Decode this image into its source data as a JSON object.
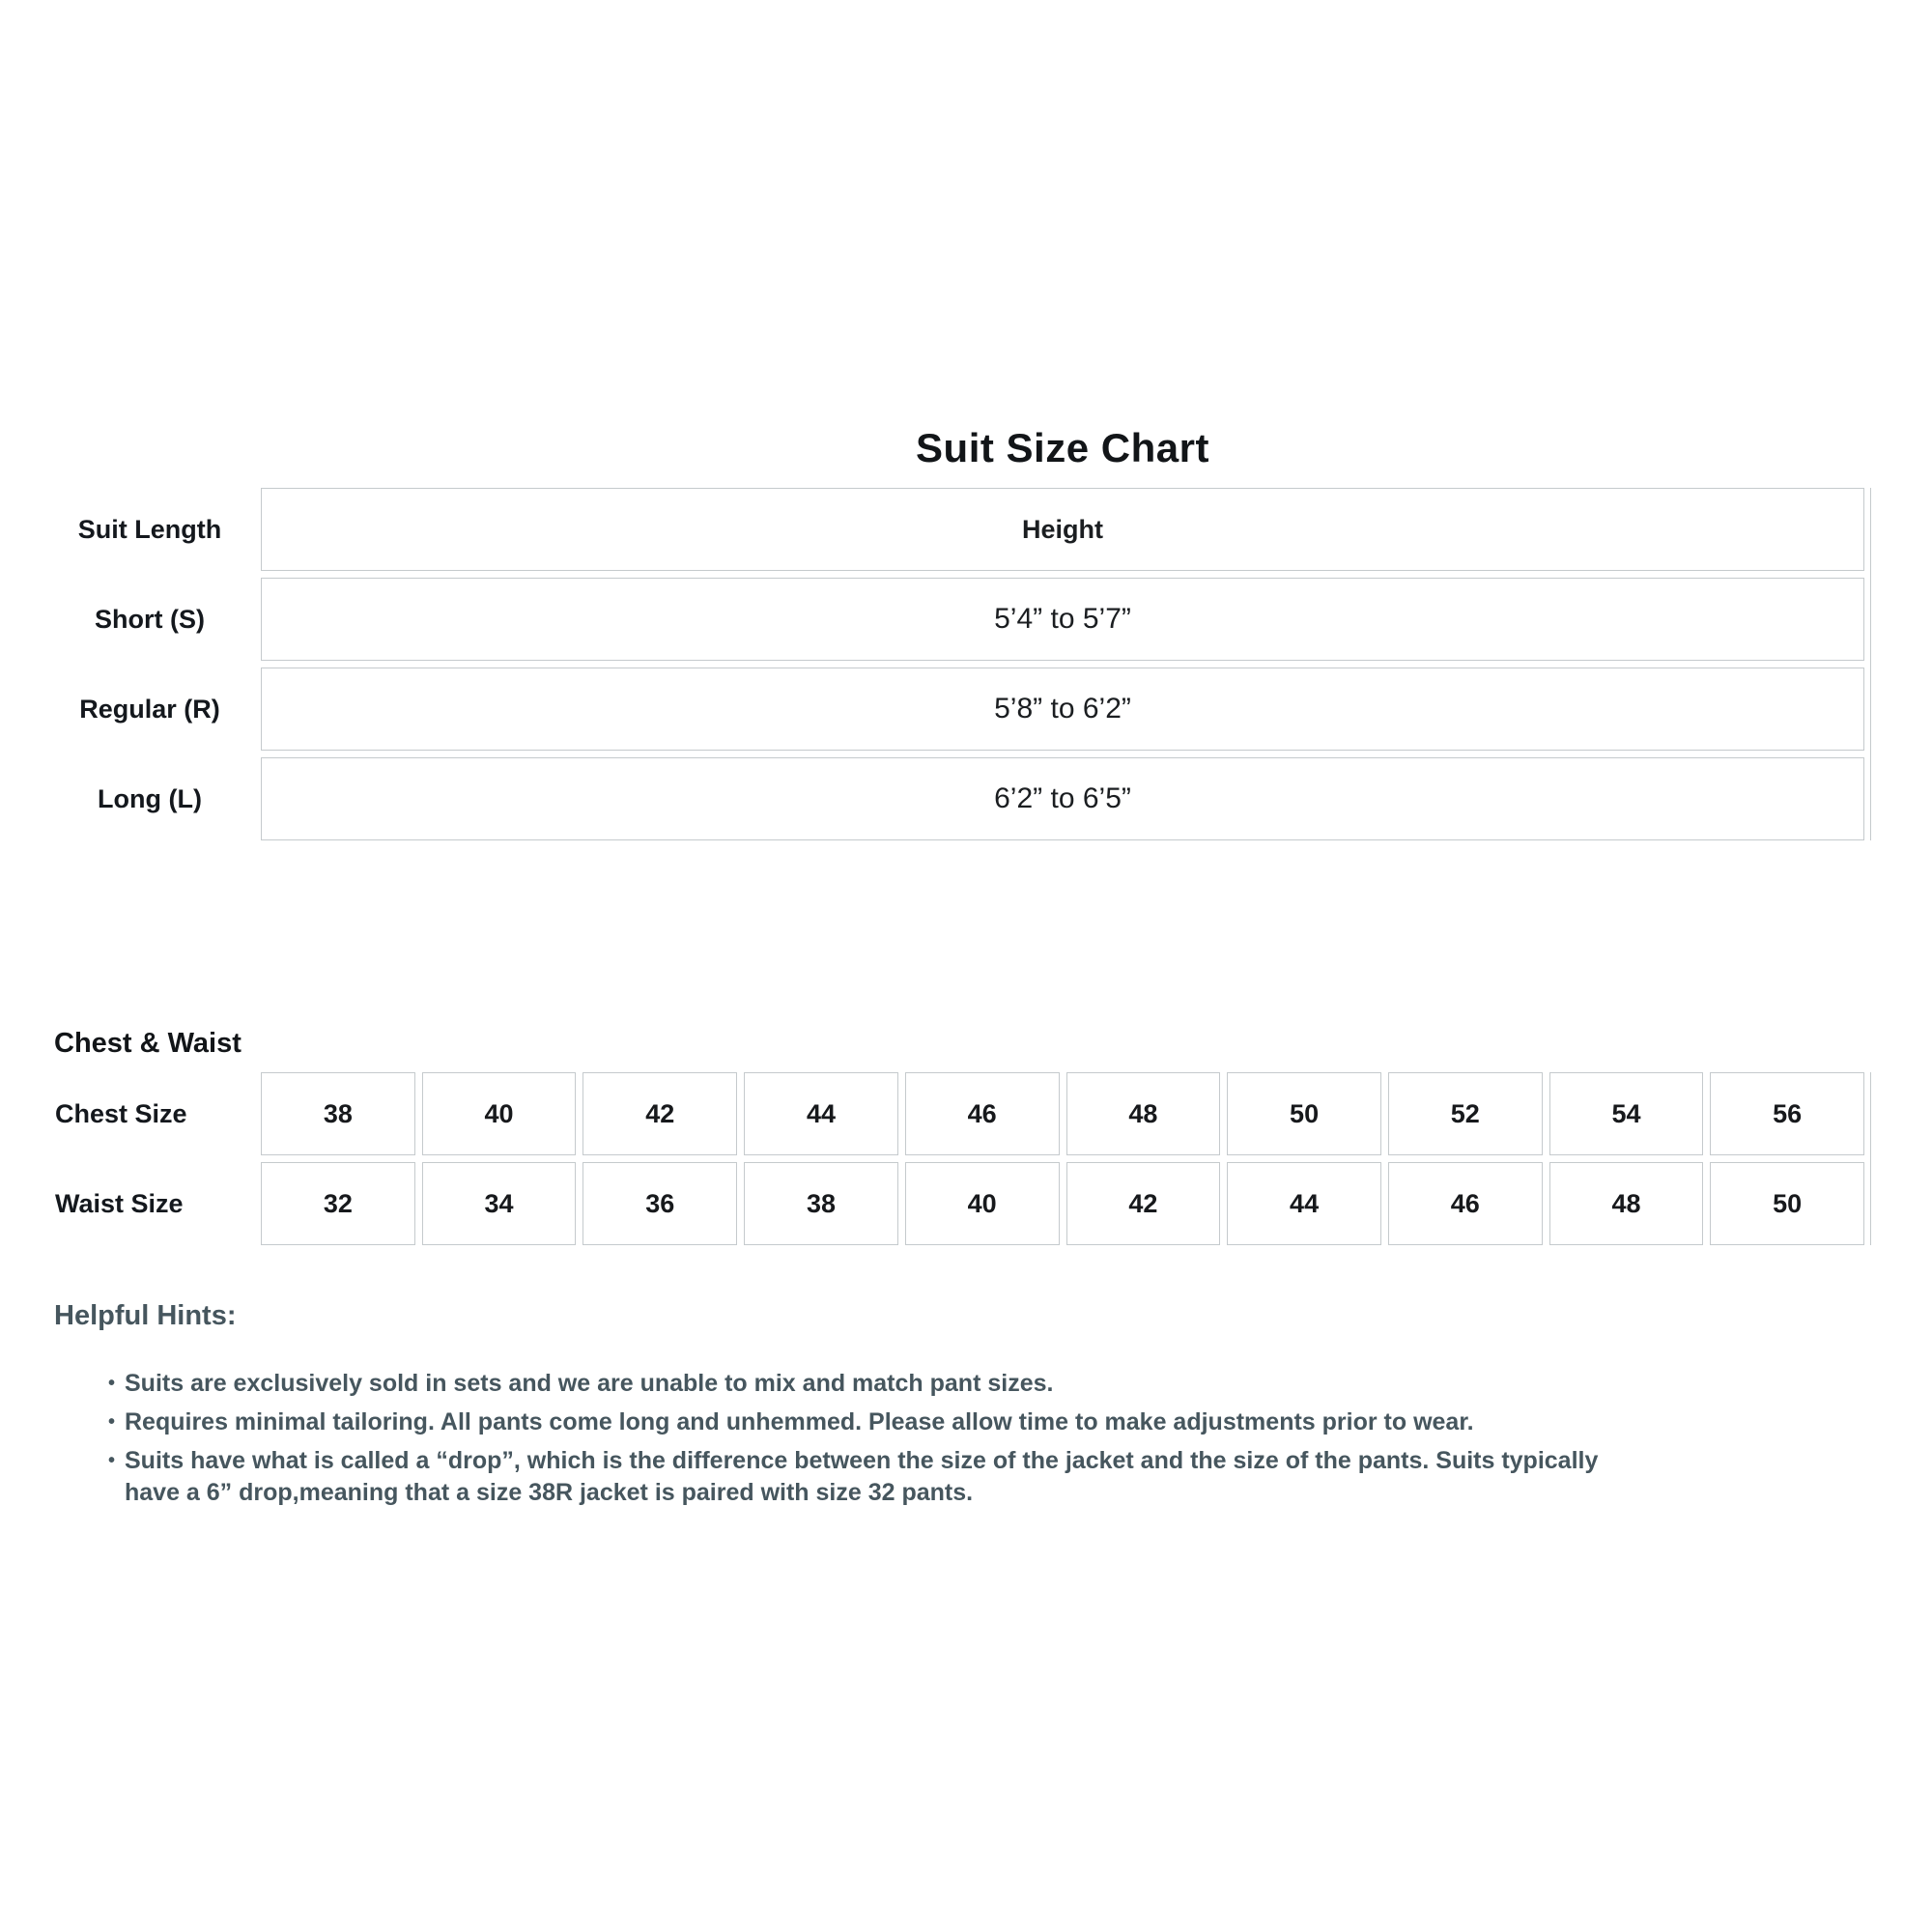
{
  "page": {
    "title": "Suit Size Chart"
  },
  "suit_length_table": {
    "header_label": "Suit Length",
    "header_value": "Height",
    "rows": [
      {
        "label": "Short (S)",
        "value": "5’4” to 5’7”"
      },
      {
        "label": "Regular (R)",
        "value": "5’8” to 6’2”"
      },
      {
        "label": "Long (L)",
        "value": "6’2” to 6’5”"
      }
    ]
  },
  "chest_waist": {
    "heading": "Chest & Waist",
    "chest_label": "Chest Size",
    "chest_sizes": [
      "38",
      "40",
      "42",
      "44",
      "46",
      "48",
      "50",
      "52",
      "54",
      "56"
    ],
    "waist_label": "Waist Size",
    "waist_sizes": [
      "32",
      "34",
      "36",
      "38",
      "40",
      "42",
      "44",
      "46",
      "48",
      "50"
    ]
  },
  "hints": {
    "heading": "Helpful Hints:",
    "bullet_char": "•",
    "items": [
      "Suits are exclusively sold in sets and we are unable to mix and match pant sizes.",
      "Requires minimal tailoring. All pants come long and unhemmed. Please allow time to make adjustments prior to wear.",
      "Suits have what is called a “drop”, which is the difference between the size of the jacket and the size of the pants. Suits typically\nhave a 6” drop,meaning that a size 38R jacket is paired with size 32 pants."
    ]
  },
  "colors": {
    "text": "#16191c",
    "hint_text": "#46565e",
    "border": "#c5cacd",
    "background": "#ffffff"
  }
}
